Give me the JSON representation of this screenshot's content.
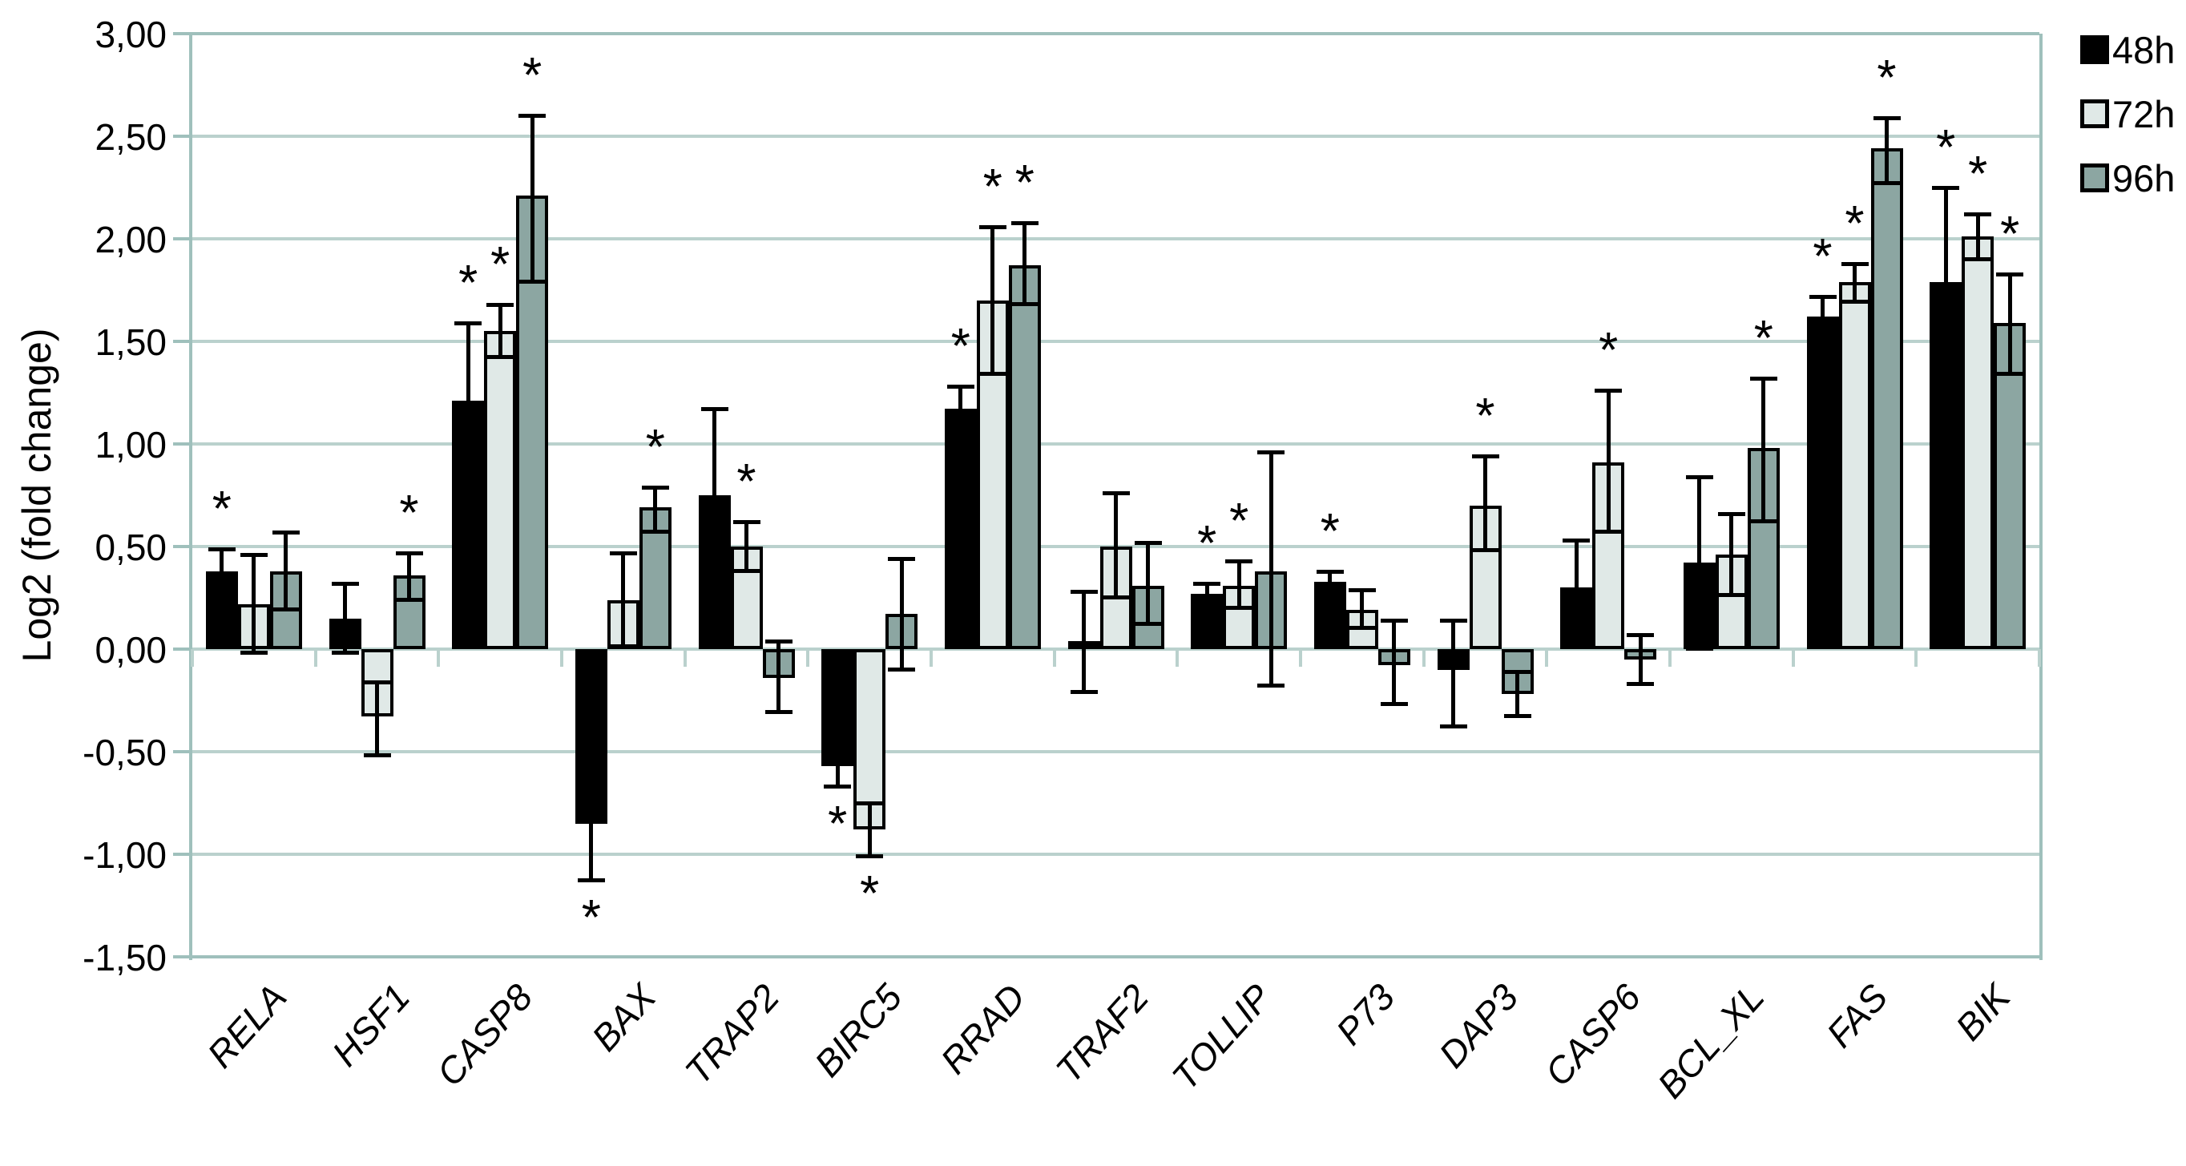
{
  "y_axis": {
    "title": "Log2 (fold change)",
    "tick_labels": [
      "3,00",
      "2,50",
      "2,00",
      "1,50",
      "1,00",
      "0,50",
      "0,00",
      "-0,50",
      "-1,00",
      "-1,50"
    ],
    "min": -1.5,
    "max": 3.0,
    "step": 0.5
  },
  "legend": {
    "position": "top-right",
    "items": [
      {
        "label": "48h",
        "color": "#000000"
      },
      {
        "label": "72h",
        "color": "#E0E9E7"
      },
      {
        "label": "96h",
        "color": "#8CA6A2"
      }
    ]
  },
  "colors": {
    "background": "#FFFFFF",
    "gridline": "#BAD1CD",
    "axis_border": "#9FC0BC",
    "bar_outline": "#000000",
    "error_bar": "#000000",
    "text": "#000000",
    "bar_48h": "#000000",
    "bar_72h": "#E0E9E7",
    "bar_96h": "#8CA6A2"
  },
  "significance_marker": "*",
  "chart_data": {
    "type": "bar",
    "title": "",
    "xlabel": "",
    "ylabel": "Log2 (fold change)",
    "ylim": [
      -1.5,
      3.0
    ],
    "grid": true,
    "legend_position": "top-right",
    "decimal_separator": ",",
    "categories": [
      "RELA",
      "HSF1",
      "CASP8",
      "BAX",
      "TRAP2",
      "BIRC5",
      "RRAD",
      "TRAF2",
      "TOLLIP",
      "P73",
      "DAP3",
      "CASP6",
      "BCL_XL",
      "FAS",
      "BIK"
    ],
    "series": [
      {
        "name": "48h",
        "color": "#000000",
        "values": [
          0.38,
          0.15,
          1.21,
          -0.85,
          0.75,
          -0.57,
          1.17,
          0.04,
          0.27,
          0.33,
          -0.1,
          0.3,
          0.42,
          1.62,
          1.79
        ],
        "err_up": [
          0.49,
          0.32,
          1.59,
          -0.57,
          1.17,
          -0.47,
          1.28,
          0.28,
          0.32,
          0.38,
          0.14,
          0.53,
          0.84,
          1.72,
          2.25
        ],
        "err_down": [
          0.27,
          -0.02,
          0.83,
          -1.13,
          0.33,
          -0.67,
          1.06,
          -0.21,
          0.22,
          0.28,
          -0.38,
          0.07,
          0.0,
          1.52,
          1.33
        ],
        "significant": [
          true,
          false,
          true,
          true,
          false,
          true,
          true,
          false,
          true,
          true,
          false,
          false,
          false,
          true,
          true
        ]
      },
      {
        "name": "72h",
        "color": "#E0E9E7",
        "values": [
          0.22,
          -0.33,
          1.55,
          0.24,
          0.5,
          -0.88,
          1.7,
          0.5,
          0.31,
          0.19,
          0.7,
          0.91,
          0.46,
          1.79,
          2.01
        ],
        "err_up": [
          0.46,
          -0.16,
          1.68,
          0.47,
          0.62,
          -0.75,
          2.06,
          0.76,
          0.43,
          0.29,
          0.94,
          1.26,
          0.66,
          1.88,
          2.12
        ],
        "err_down": [
          -0.02,
          -0.52,
          1.42,
          0.01,
          0.38,
          -1.01,
          1.34,
          0.25,
          0.2,
          0.1,
          0.48,
          0.57,
          0.26,
          1.69,
          1.9
        ],
        "significant": [
          false,
          false,
          true,
          false,
          true,
          true,
          true,
          false,
          true,
          false,
          true,
          true,
          false,
          true,
          true
        ]
      },
      {
        "name": "96h",
        "color": "#8CA6A2",
        "values": [
          0.38,
          0.36,
          2.21,
          0.69,
          -0.14,
          0.17,
          1.87,
          0.31,
          0.38,
          -0.08,
          -0.22,
          -0.05,
          0.98,
          2.44,
          1.59
        ],
        "err_up": [
          0.57,
          0.47,
          2.6,
          0.79,
          0.04,
          0.44,
          2.08,
          0.52,
          0.96,
          0.14,
          -0.11,
          0.07,
          1.32,
          2.59,
          1.83
        ],
        "err_down": [
          0.19,
          0.24,
          1.79,
          0.57,
          -0.31,
          -0.1,
          1.68,
          0.12,
          -0.18,
          -0.27,
          -0.33,
          -0.17,
          0.62,
          2.27,
          1.34
        ],
        "significant": [
          false,
          true,
          true,
          true,
          false,
          false,
          true,
          false,
          false,
          false,
          false,
          false,
          true,
          true,
          true
        ]
      }
    ]
  }
}
